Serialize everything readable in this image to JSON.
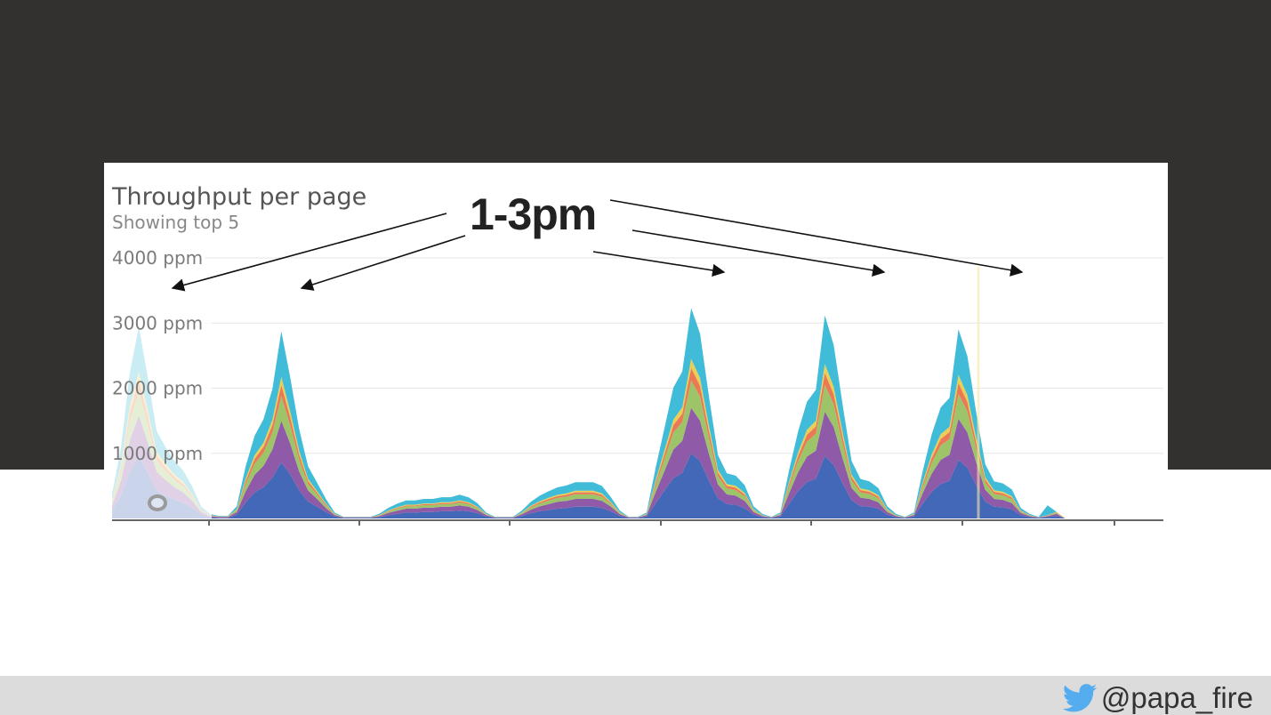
{
  "slide": {
    "callout": "1-3pm",
    "footer": {
      "handle": "@papa_fire",
      "icon": "twitter-bird-icon"
    }
  },
  "chart_data": {
    "type": "area",
    "stacked": true,
    "title": "Throughput per page",
    "subtitle": "Showing top 5",
    "y_ticks": [
      "4000 ppm",
      "3000 ppm",
      "2000 ppm",
      "1000 ppm"
    ],
    "y_tick_values": [
      4000,
      3000,
      2000,
      1000
    ],
    "ylim": [
      0,
      4300
    ],
    "grid": true,
    "x_ticks_labels_visible": false,
    "x": [
      0,
      1,
      2,
      3,
      4,
      5,
      6,
      7,
      8,
      9,
      10,
      11,
      12,
      13,
      14,
      15,
      16,
      17,
      18,
      19,
      20,
      21,
      22,
      23,
      24,
      25,
      26,
      27,
      28,
      29,
      30,
      31,
      32,
      33,
      34,
      35,
      36,
      37,
      38,
      39,
      40,
      41,
      42,
      43,
      44,
      45,
      46,
      47,
      48,
      49,
      50,
      51,
      52,
      53,
      54,
      55,
      56,
      57,
      58,
      59,
      60,
      61,
      62,
      63,
      64,
      65,
      66,
      67,
      68,
      69,
      70,
      71,
      72,
      73,
      74,
      75,
      76,
      77,
      78,
      79,
      80,
      81,
      82,
      83,
      84,
      85,
      86,
      87,
      88,
      89,
      90,
      91,
      92,
      93,
      94,
      95,
      96,
      97,
      98,
      99,
      100,
      101,
      102,
      103,
      104,
      105,
      106,
      107,
      108,
      109,
      110,
      111,
      112,
      113,
      114,
      115,
      116,
      117,
      118
    ],
    "series": [
      {
        "color": "#4368b8",
        "values": [
          120,
          350,
          720,
          950,
          700,
          430,
          350,
          290,
          240,
          160,
          60,
          20,
          10,
          10,
          60,
          250,
          400,
          480,
          630,
          860,
          680,
          430,
          260,
          180,
          100,
          30,
          10,
          10,
          10,
          10,
          20,
          50,
          70,
          90,
          90,
          100,
          100,
          110,
          110,
          120,
          110,
          80,
          30,
          10,
          10,
          10,
          40,
          80,
          110,
          130,
          150,
          160,
          180,
          180,
          180,
          160,
          110,
          40,
          10,
          10,
          30,
          230,
          430,
          620,
          700,
          1000,
          880,
          580,
          310,
          220,
          210,
          160,
          60,
          20,
          10,
          30,
          230,
          420,
          560,
          610,
          960,
          820,
          540,
          280,
          190,
          180,
          150,
          60,
          20,
          10,
          30,
          230,
          410,
          530,
          580,
          900,
          780,
          510,
          260,
          180,
          170,
          140,
          50,
          20,
          10,
          20,
          40,
          0,
          0,
          0,
          0,
          0,
          0,
          0,
          0,
          0,
          0,
          0,
          0
        ]
      },
      {
        "color": "#8f5aa8",
        "values": [
          80,
          230,
          480,
          630,
          470,
          290,
          240,
          190,
          160,
          110,
          40,
          15,
          10,
          10,
          40,
          170,
          270,
          330,
          430,
          640,
          470,
          290,
          170,
          120,
          60,
          20,
          5,
          5,
          5,
          5,
          15,
          35,
          50,
          60,
          60,
          65,
          65,
          70,
          70,
          80,
          70,
          50,
          20,
          5,
          5,
          5,
          25,
          55,
          75,
          90,
          105,
          110,
          120,
          120,
          120,
          110,
          70,
          25,
          5,
          5,
          20,
          170,
          300,
          440,
          490,
          700,
          620,
          410,
          210,
          150,
          140,
          110,
          40,
          15,
          5,
          20,
          160,
          290,
          390,
          430,
          680,
          580,
          380,
          190,
          130,
          120,
          100,
          40,
          15,
          5,
          20,
          160,
          280,
          370,
          400,
          630,
          540,
          350,
          180,
          120,
          115,
          95,
          35,
          15,
          5,
          15,
          30,
          0,
          0,
          0,
          0,
          0,
          0,
          0,
          0,
          0,
          0,
          0,
          0
        ]
      },
      {
        "color": "#9ec46a",
        "values": [
          50,
          140,
          300,
          380,
          280,
          170,
          140,
          110,
          90,
          60,
          20,
          10,
          5,
          5,
          25,
          110,
          170,
          200,
          260,
          380,
          280,
          180,
          100,
          70,
          40,
          10,
          3,
          3,
          3,
          3,
          10,
          20,
          30,
          35,
          35,
          40,
          40,
          40,
          40,
          45,
          40,
          30,
          10,
          3,
          3,
          3,
          15,
          35,
          45,
          55,
          60,
          65,
          70,
          70,
          70,
          65,
          40,
          15,
          3,
          3,
          12,
          100,
          180,
          260,
          290,
          420,
          370,
          240,
          130,
          90,
          85,
          70,
          25,
          10,
          3,
          12,
          100,
          170,
          230,
          260,
          410,
          350,
          230,
          115,
          80,
          75,
          60,
          25,
          10,
          3,
          12,
          95,
          165,
          220,
          240,
          380,
          325,
          210,
          110,
          75,
          70,
          60,
          20,
          10,
          3,
          10,
          18,
          0,
          0,
          0,
          0,
          0,
          0,
          0,
          0,
          0,
          0,
          0,
          0
        ]
      },
      {
        "color": "#ea7a55",
        "values": [
          20,
          60,
          130,
          170,
          125,
          75,
          60,
          50,
          40,
          25,
          10,
          5,
          3,
          3,
          10,
          50,
          75,
          90,
          115,
          170,
          125,
          80,
          45,
          30,
          18,
          5,
          2,
          2,
          2,
          2,
          5,
          10,
          12,
          15,
          15,
          15,
          15,
          18,
          18,
          20,
          18,
          12,
          5,
          2,
          2,
          2,
          6,
          15,
          20,
          25,
          28,
          30,
          32,
          32,
          32,
          28,
          18,
          6,
          2,
          2,
          5,
          45,
          80,
          115,
          130,
          190,
          165,
          110,
          55,
          40,
          38,
          30,
          10,
          4,
          2,
          5,
          45,
          78,
          105,
          115,
          185,
          155,
          100,
          52,
          36,
          34,
          28,
          10,
          4,
          2,
          5,
          43,
          75,
          100,
          108,
          170,
          145,
          95,
          48,
          34,
          32,
          26,
          9,
          4,
          2,
          4,
          8,
          0,
          0,
          0,
          0,
          0,
          0,
          0,
          0,
          0,
          0,
          0,
          0
        ]
      },
      {
        "color": "#e9cf55",
        "values": [
          15,
          45,
          95,
          125,
          90,
          55,
          45,
          35,
          30,
          18,
          7,
          3,
          2,
          2,
          8,
          36,
          55,
          65,
          85,
          125,
          90,
          58,
          33,
          22,
          13,
          4,
          1,
          1,
          1,
          1,
          4,
          7,
          9,
          11,
          11,
          11,
          11,
          13,
          13,
          14,
          13,
          9,
          4,
          1,
          1,
          1,
          5,
          11,
          15,
          18,
          20,
          22,
          24,
          24,
          24,
          20,
          13,
          5,
          1,
          1,
          4,
          33,
          58,
          84,
          95,
          140,
          120,
          80,
          40,
          29,
          28,
          22,
          8,
          3,
          1,
          4,
          33,
          57,
          77,
          85,
          135,
          113,
          74,
          38,
          26,
          25,
          20,
          8,
          3,
          1,
          4,
          31,
          55,
          73,
          79,
          125,
          106,
          70,
          35,
          25,
          23,
          19,
          7,
          3,
          1,
          3,
          6,
          0,
          0,
          0,
          0,
          0,
          0,
          0,
          0,
          0,
          0,
          0,
          0
        ]
      },
      {
        "color": "#40bcd8",
        "values": [
          90,
          260,
          520,
          690,
          510,
          320,
          260,
          210,
          175,
          115,
          45,
          15,
          10,
          10,
          45,
          190,
          300,
          360,
          470,
          700,
          520,
          330,
          190,
          130,
          70,
          20,
          5,
          5,
          5,
          5,
          20,
          40,
          55,
          65,
          65,
          70,
          70,
          75,
          75,
          85,
          75,
          55,
          20,
          5,
          5,
          5,
          30,
          60,
          85,
          100,
          115,
          120,
          130,
          130,
          130,
          115,
          75,
          28,
          5,
          5,
          22,
          190,
          340,
          490,
          550,
          780,
          680,
          450,
          230,
          165,
          155,
          120,
          45,
          17,
          5,
          22,
          180,
          320,
          430,
          475,
          750,
          640,
          420,
          210,
          145,
          135,
          110,
          45,
          17,
          5,
          22,
          175,
          310,
          410,
          445,
          700,
          600,
          390,
          200,
          135,
          128,
          105,
          40,
          17,
          5,
          150,
          0,
          0,
          0,
          0,
          0,
          0,
          0,
          0,
          0,
          0,
          0,
          0,
          0
        ]
      }
    ]
  }
}
